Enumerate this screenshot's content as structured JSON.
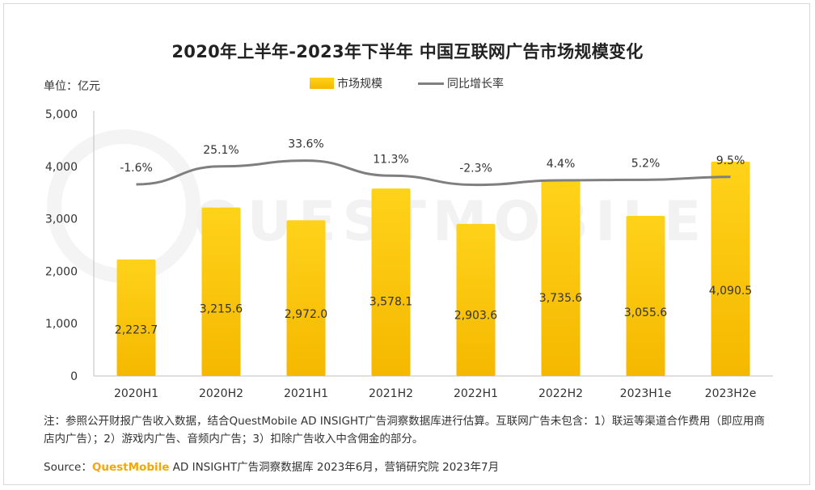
{
  "title": "2020年上半年-2023年下半年 中国互联网广告市场规模变化",
  "unit_label": "单位：亿元",
  "legend": {
    "bar": "市场规模",
    "line": "同比增长率"
  },
  "watermark": "QUESTMOBILE",
  "colors": {
    "bar_top": "#ffd21a",
    "bar_bottom": "#f5b800",
    "line": "#7f7f7f",
    "brand": "#f5a800"
  },
  "chart_data": {
    "type": "bar",
    "categories": [
      "2020H1",
      "2020H2",
      "2021H1",
      "2021H2",
      "2022H1",
      "2022H2",
      "2023H1e",
      "2023H2e"
    ],
    "series": [
      {
        "name": "市场规模",
        "type": "bar",
        "values": [
          2223.7,
          3215.6,
          2972.0,
          3578.1,
          2903.6,
          3735.6,
          3055.6,
          4090.5
        ]
      },
      {
        "name": "同比增长率",
        "type": "line",
        "values": [
          -1.6,
          25.1,
          33.6,
          11.3,
          -2.3,
          4.4,
          5.2,
          9.5
        ]
      }
    ],
    "bar_labels": [
      "2,223.7",
      "3,215.6",
      "2,972.0",
      "3,578.1",
      "2,903.6",
      "3,735.6",
      "3,055.6",
      "4,090.5"
    ],
    "line_labels": [
      "-1.6%",
      "25.1%",
      "33.6%",
      "11.3%",
      "-2.3%",
      "4.4%",
      "5.2%",
      "9.5%"
    ],
    "y_ticks": [
      "0",
      "1,000",
      "2,000",
      "3,000",
      "4,000",
      "5,000"
    ],
    "ylim": [
      0,
      5000
    ],
    "grid": false,
    "legend_position": "top-center"
  },
  "note": "注：参照公开财报广告收入数据，结合QuestMobile AD INSIGHT广告洞察数据库进行估算。互联网广告未包含：1）联运等渠道合作费用（即应用商店内广告）；2）游戏内广告、音频内广告；3）扣除广告收入中含佣金的部分。",
  "source": {
    "prefix": "Source：",
    "brand": "QuestMobile",
    "text": " AD INSIGHT广告洞察数据库 2023年6月，营销研究院 2023年7月"
  }
}
